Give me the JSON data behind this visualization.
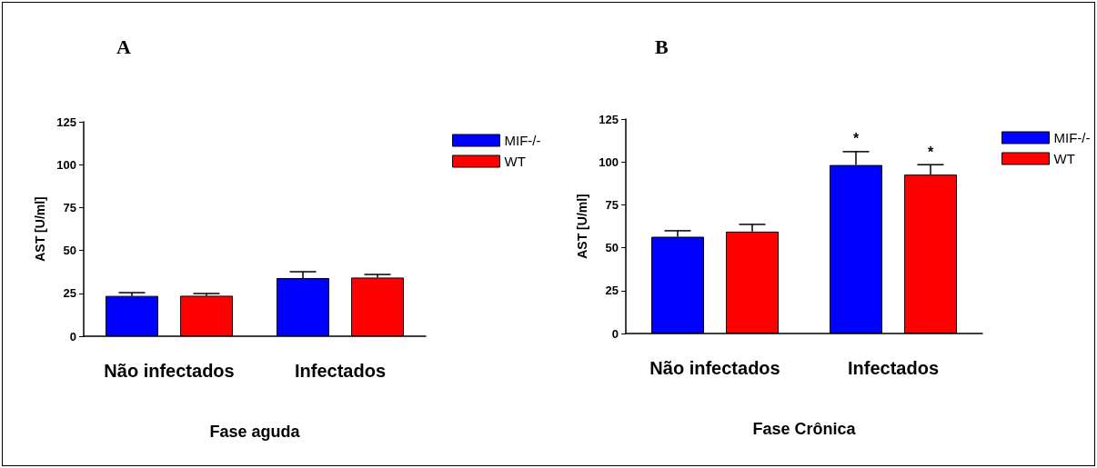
{
  "chart_data": [
    {
      "type": "bar",
      "title": "A",
      "xlabel": "Fase aguda",
      "ylabel": "AST [U/ml]",
      "categories": [
        "Não infectados",
        "Infectados"
      ],
      "ylim": [
        0,
        125
      ],
      "yticks": [
        0,
        25,
        50,
        75,
        100,
        125
      ],
      "grid": false,
      "legend": "top right",
      "series": [
        {
          "name": "MIF-/-",
          "color": "#0000ff",
          "values": [
            23.5,
            33.9
          ],
          "errors": [
            [
              23.5,
              25.4
            ],
            [
              33.9,
              37.6
            ]
          ]
        },
        {
          "name": "WT",
          "color": "#ff0000",
          "values": [
            23.6,
            34.2
          ],
          "errors": [
            [
              23.6,
              24.9
            ],
            [
              34.2,
              36
            ]
          ]
        }
      ]
    },
    {
      "type": "bar",
      "title": "B",
      "xlabel": "Fase Crônica",
      "ylabel": "AST [U/ml]",
      "categories": [
        "Não infectados",
        "Infectados"
      ],
      "ylim": [
        0,
        125
      ],
      "yticks": [
        0,
        25,
        50,
        75,
        100,
        125
      ],
      "grid": false,
      "legend": "top right",
      "series": [
        {
          "name": "MIF-/-",
          "color": "#0000ff",
          "values": [
            56.4,
            98.2
          ],
          "errors": [
            [
              56.4,
              59.9
            ],
            [
              98.2,
              106
            ]
          ]
        },
        {
          "name": "WT",
          "color": "#ff0000",
          "values": [
            59.4,
            92.6
          ],
          "errors": [
            [
              59.4,
              63.6
            ],
            [
              92.6,
              98.4
            ]
          ]
        }
      ],
      "annotations": [
        "*",
        "*"
      ]
    }
  ]
}
